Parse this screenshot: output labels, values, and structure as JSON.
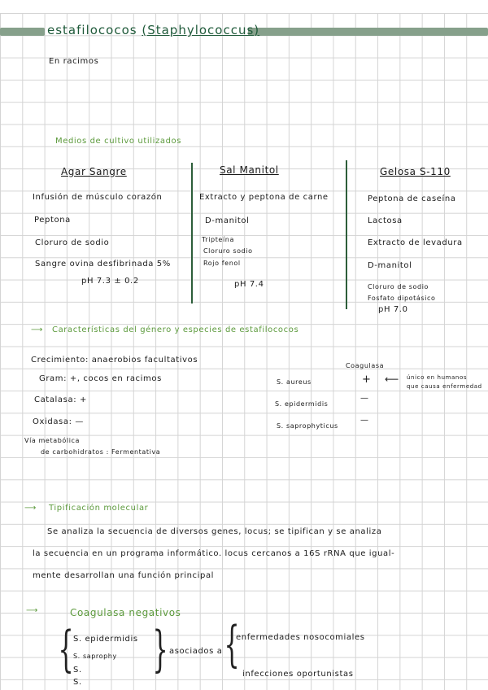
{
  "title": {
    "main": "estafilococos",
    "latin": "(Staphylococcus)"
  },
  "subtitle": "En racimos",
  "media": {
    "heading": "Medios de cultivo utilizados",
    "columns": [
      {
        "name": "Agar Sangre",
        "items": [
          "Infusión de músculo corazón",
          "Peptona",
          "Cloruro de sodio",
          "Sangre ovina desfibrinada 5%"
        ],
        "ph": "pH 7.3 ± 0.2"
      },
      {
        "name": "Sal Manitol",
        "items": [
          "Extracto y peptona de carne",
          "D-manitol",
          "Tripteína",
          "Cloruro sodio",
          "Rojo fenol"
        ],
        "ph": "pH 7.4"
      },
      {
        "name": "Gelosa S-110",
        "items": [
          "Peptona de caseína",
          "Lactosa",
          "Extracto de levadura",
          "D-manitol",
          "Cloruro de sodio",
          "Fosfato dipotásico"
        ],
        "ph": "pH 7.0"
      }
    ]
  },
  "characteristics": {
    "heading": "Características del género y especies de estafilococos",
    "rows": [
      "Crecimiento: anaerobios facultativos",
      "Gram: +, cocos en racimos",
      "Catalasa: +",
      "Oxidasa: —"
    ],
    "metabolic_1": "Vía metabólica",
    "metabolic_2": "de carbohidratos : Fermentativa",
    "coagulase_label": "Coagulasa",
    "species": [
      {
        "name": "S. aureus",
        "coagulase": "+"
      },
      {
        "name": "S. epidermidis",
        "coagulase": "—"
      },
      {
        "name": "S. saprophyticus",
        "coagulase": "—"
      }
    ],
    "note_1": "único en humanos",
    "note_2": "que causa enfermedad"
  },
  "typing": {
    "heading": "Tipificación molecular",
    "lines": [
      "Se analiza la secuencia de diversos genes, locus; se tipifican y se analiza",
      "la secuencia en un programa informático. locus cercanos a 16S rRNA que igual-",
      "mente desarrollan una función principal"
    ]
  },
  "negatives": {
    "heading": "Coagulasa negativos",
    "species": [
      "S. epidermidis",
      "S. saprophy",
      "S.",
      "S."
    ],
    "associated": "asociados a",
    "outcomes": [
      "enfermedades nosocomiales",
      "infecciones oportunistas"
    ]
  },
  "colors": {
    "title": "#1f5a3a",
    "heading": "#5c9a3c",
    "bar": "#86a08b"
  }
}
